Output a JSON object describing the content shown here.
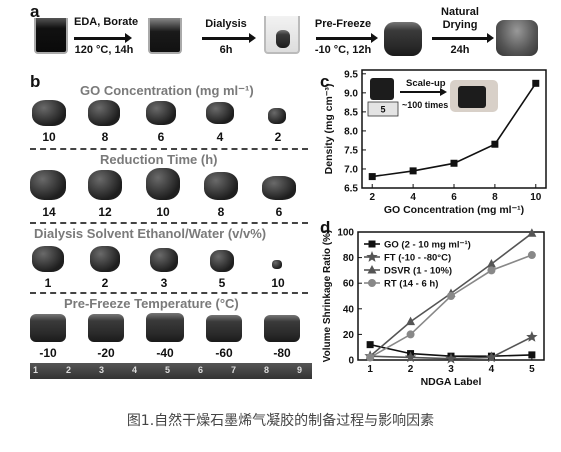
{
  "panel_a": {
    "letter": "a",
    "steps": [
      {
        "top": "EDA, Borate",
        "bottom": "120 °C, 14h"
      },
      {
        "top": "Dialysis",
        "bottom": "6h"
      },
      {
        "top": "Pre-Freeze",
        "bottom": "-10 °C, 12h"
      },
      {
        "top": "Natural",
        "top2": "Drying",
        "bottom": "24h"
      }
    ]
  },
  "panel_b": {
    "letter": "b",
    "rows": [
      {
        "title": "GO Concentration (mg ml⁻¹)",
        "labels": [
          "10",
          "8",
          "6",
          "4",
          "2"
        ]
      },
      {
        "title": "Reduction Time (h)",
        "labels": [
          "14",
          "12",
          "10",
          "8",
          "6"
        ]
      },
      {
        "title": "Dialysis Solvent Ethanol/Water (v/v%)",
        "labels": [
          "1",
          "2",
          "3",
          "5",
          "10"
        ]
      },
      {
        "title": "Pre-Freeze Temperature (°C)",
        "labels": [
          "-10",
          "-20",
          "-40",
          "-60",
          "-80"
        ]
      }
    ],
    "ruler_ticks": [
      "1",
      "2",
      "3",
      "4",
      "5",
      "6",
      "7",
      "8",
      "9"
    ]
  },
  "chart_data": [
    {
      "panel": "c",
      "type": "line",
      "xlabel": "GO Concentration (mg ml⁻¹)",
      "ylabel": "Density (mg cm⁻³)",
      "x": [
        2,
        4,
        6,
        8,
        10
      ],
      "xticks": [
        "2",
        "4",
        "6",
        "8",
        "10"
      ],
      "yticks": [
        "6.5",
        "7.0",
        "7.5",
        "8.0",
        "8.5",
        "9.0",
        "9.5"
      ],
      "xlim": [
        1.5,
        10.5
      ],
      "ylim": [
        6.5,
        9.6
      ],
      "series": [
        {
          "values": [
            6.8,
            6.95,
            7.15,
            7.65,
            9.25
          ]
        }
      ],
      "inset_label": "Scale-up",
      "inset_sub": "~100 times",
      "inset_ruler": "5"
    },
    {
      "panel": "d",
      "type": "line",
      "xlabel": "NDGA Label",
      "ylabel": "Volume Shrinkage Ratio (%)",
      "x": [
        1,
        2,
        3,
        4,
        5
      ],
      "xticks": [
        "1",
        "2",
        "3",
        "4",
        "5"
      ],
      "yticks": [
        "0",
        "20",
        "40",
        "60",
        "80",
        "100"
      ],
      "xlim": [
        0.7,
        5.3
      ],
      "ylim": [
        0,
        100
      ],
      "legend_position": "top-left",
      "series": [
        {
          "name": "GO (2 - 10 mg ml⁻¹)",
          "values": [
            12,
            5,
            3,
            3,
            4
          ],
          "marker": "square"
        },
        {
          "name": "FT (-10 - -80°C)",
          "values": [
            3,
            2,
            1,
            2,
            18
          ],
          "marker": "star"
        },
        {
          "name": "DSVR (1 - 10%)",
          "values": [
            3,
            30,
            52,
            75,
            99
          ],
          "marker": "triangle"
        },
        {
          "name": "RT (14 - 6 h)",
          "values": [
            2,
            20,
            50,
            70,
            82
          ],
          "marker": "circle"
        }
      ]
    }
  ],
  "colors": {
    "dark": "#111111",
    "gray_title": "#7a7a7a",
    "line_gray": "#8a8a8a"
  },
  "caption": "图1.自然干燥石墨烯气凝胶的制备过程与影响因素"
}
